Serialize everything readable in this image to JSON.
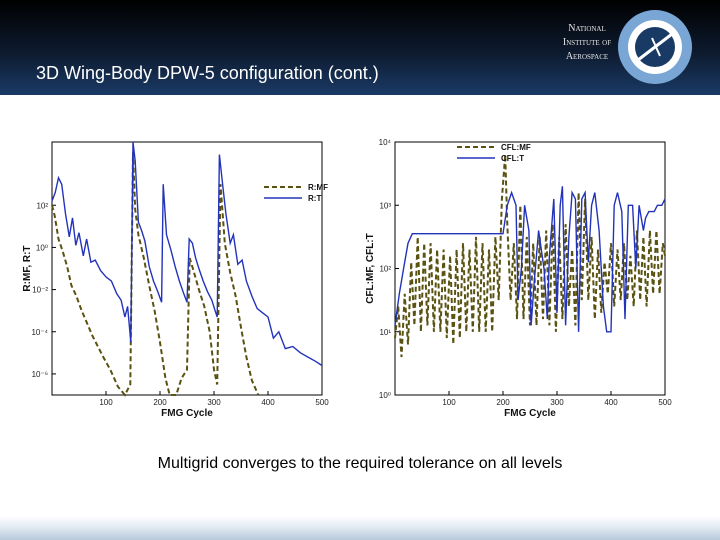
{
  "slide": {
    "title": "3D Wing-Body DPW-5 configuration (cont.)",
    "caption": "Multigrid converges to the required tolerance on all levels"
  },
  "logo": {
    "lines": [
      "National",
      "Institute of",
      "Aerospace"
    ]
  },
  "colors": {
    "mf": "#5a5210",
    "t": "#2233bb",
    "header": "#0d1a2e"
  },
  "chart_data": [
    {
      "type": "line",
      "xlabel": "FMG Cycle",
      "ylabel": "R:MF, R:T",
      "x_ticks": [
        "100",
        "200",
        "300",
        "400",
        "500"
      ],
      "y_ticks": [
        "10²",
        "10⁰",
        "10⁻²",
        "10⁻⁴",
        "10⁻⁶"
      ],
      "y_log_range": [
        -7,
        5
      ],
      "x_range": [
        0,
        500
      ],
      "yscale": "log",
      "legend_position": "top-right",
      "series": [
        {
          "name": "R:MF",
          "style": "dashed",
          "points": [
            [
              0,
              2
            ],
            [
              5,
              1.5
            ],
            [
              12,
              0.4
            ],
            [
              20,
              -0.2
            ],
            [
              28,
              -0.9
            ],
            [
              36,
              -1.8
            ],
            [
              45,
              -2.3
            ],
            [
              55,
              -3.0
            ],
            [
              65,
              -3.6
            ],
            [
              75,
              -4.2
            ],
            [
              85,
              -4.7
            ],
            [
              95,
              -5.2
            ],
            [
              108,
              -5.8
            ],
            [
              122,
              -6.6
            ],
            [
              135,
              -7
            ],
            [
              145,
              -6.5
            ],
            [
              150,
              4.5
            ],
            [
              154,
              1.8
            ],
            [
              160,
              0.6
            ],
            [
              170,
              -0.5
            ],
            [
              180,
              -1.8
            ],
            [
              190,
              -3.0
            ],
            [
              200,
              -4.5
            ],
            [
              210,
              -6.2
            ],
            [
              218,
              -7
            ],
            [
              230,
              -7
            ],
            [
              240,
              -6.2
            ],
            [
              250,
              -5.8
            ],
            [
              255,
              -0.5
            ],
            [
              262,
              -1.1
            ],
            [
              272,
              -2.0
            ],
            [
              282,
              -2.8
            ],
            [
              292,
              -4.0
            ],
            [
              300,
              -5.8
            ],
            [
              306,
              -6.5
            ],
            [
              312,
              3.0
            ],
            [
              320,
              0.2
            ],
            [
              330,
              -1.2
            ],
            [
              340,
              -2.3
            ],
            [
              350,
              -3.8
            ],
            [
              360,
              -5.2
            ],
            [
              370,
              -6.3
            ],
            [
              382,
              -7
            ]
          ]
        },
        {
          "name": "R:T",
          "style": "solid",
          "points": [
            [
              0,
              2.2
            ],
            [
              6,
              2.6
            ],
            [
              12,
              3.3
            ],
            [
              18,
              3.0
            ],
            [
              25,
              1.6
            ],
            [
              32,
              0.5
            ],
            [
              38,
              1.4
            ],
            [
              44,
              0.1
            ],
            [
              50,
              0.7
            ],
            [
              58,
              -0.4
            ],
            [
              64,
              0.4
            ],
            [
              72,
              -0.7
            ],
            [
              80,
              -0.6
            ],
            [
              90,
              -1.1
            ],
            [
              100,
              -1.4
            ],
            [
              110,
              -1.6
            ],
            [
              120,
              -2.2
            ],
            [
              128,
              -2.5
            ],
            [
              135,
              -3.3
            ],
            [
              140,
              -2.8
            ],
            [
              146,
              -4.5
            ],
            [
              150,
              5.0
            ],
            [
              154,
              4.1
            ],
            [
              160,
              1.2
            ],
            [
              166,
              0.8
            ],
            [
              172,
              0.3
            ],
            [
              180,
              -0.9
            ],
            [
              188,
              -1.6
            ],
            [
              196,
              -2.1
            ],
            [
              203,
              -2.6
            ],
            [
              206,
              3.0
            ],
            [
              212,
              0.6
            ],
            [
              220,
              -0.1
            ],
            [
              228,
              -0.9
            ],
            [
              236,
              -1.6
            ],
            [
              244,
              -2.2
            ],
            [
              250,
              -2.6
            ],
            [
              254,
              0.4
            ],
            [
              260,
              0.2
            ],
            [
              266,
              -0.5
            ],
            [
              272,
              -1.0
            ],
            [
              280,
              -1.6
            ],
            [
              288,
              -2.1
            ],
            [
              296,
              -2.5
            ],
            [
              302,
              -3.0
            ],
            [
              306,
              -3.3
            ],
            [
              310,
              4.4
            ],
            [
              316,
              3.0
            ],
            [
              322,
              1.6
            ],
            [
              330,
              0.2
            ],
            [
              336,
              0.6
            ],
            [
              344,
              -0.8
            ],
            [
              352,
              -0.6
            ],
            [
              360,
              -1.6
            ],
            [
              370,
              -2.3
            ],
            [
              380,
              -2.9
            ],
            [
              390,
              -3.1
            ],
            [
              400,
              -3.3
            ],
            [
              410,
              -4.3
            ],
            [
              420,
              -4.0
            ],
            [
              432,
              -4.8
            ],
            [
              446,
              -4.7
            ],
            [
              460,
              -5.0
            ],
            [
              474,
              -5.2
            ],
            [
              488,
              -5.4
            ],
            [
              500,
              -5.6
            ]
          ]
        }
      ]
    },
    {
      "type": "line",
      "xlabel": "FMG Cycle",
      "ylabel": "CFL:MF, CFL:T",
      "x_ticks": [
        "100",
        "200",
        "300",
        "400",
        "500"
      ],
      "y_ticks": [
        "10⁴",
        "10³",
        "10²",
        "10¹",
        "10⁰"
      ],
      "y_log_range": [
        0,
        4
      ],
      "x_range": [
        0,
        500
      ],
      "yscale": "log",
      "legend_position": "top-right",
      "series": [
        {
          "name": "CFL:MF",
          "style": "dashed",
          "points": [
            [
              0,
              0.9
            ],
            [
              6,
              1.4
            ],
            [
              12,
              0.6
            ],
            [
              18,
              1.6
            ],
            [
              24,
              0.8
            ],
            [
              30,
              2.1
            ],
            [
              36,
              1.1
            ],
            [
              42,
              2.5
            ],
            [
              48,
              1.0
            ],
            [
              54,
              2.4
            ],
            [
              60,
              1.1
            ],
            [
              66,
              2.4
            ],
            [
              72,
              1.0
            ],
            [
              78,
              2.3
            ],
            [
              84,
              1.0
            ],
            [
              90,
              2.3
            ],
            [
              96,
              0.9
            ],
            [
              102,
              2.2
            ],
            [
              108,
              0.8
            ],
            [
              114,
              2.3
            ],
            [
              120,
              0.9
            ],
            [
              126,
              2.4
            ],
            [
              132,
              1.0
            ],
            [
              138,
              2.3
            ],
            [
              144,
              1.0
            ],
            [
              150,
              2.5
            ],
            [
              156,
              1.0
            ],
            [
              162,
              2.4
            ],
            [
              168,
              1.0
            ],
            [
              174,
              2.3
            ],
            [
              180,
              1.0
            ],
            [
              186,
              2.5
            ],
            [
              192,
              1.5
            ],
            [
              198,
              3.1
            ],
            [
              204,
              3.8
            ],
            [
              208,
              2.7
            ],
            [
              214,
              1.5
            ],
            [
              220,
              2.4
            ],
            [
              226,
              1.2
            ],
            [
              232,
              3.0
            ],
            [
              238,
              1.2
            ],
            [
              244,
              2.5
            ],
            [
              250,
              1.1
            ],
            [
              256,
              2.4
            ],
            [
              262,
              1.1
            ],
            [
              268,
              2.5
            ],
            [
              274,
              1.2
            ],
            [
              280,
              2.6
            ],
            [
              286,
              1.1
            ],
            [
              292,
              2.7
            ],
            [
              298,
              1.0
            ],
            [
              304,
              2.5
            ],
            [
              310,
              1.2
            ],
            [
              316,
              2.7
            ],
            [
              322,
              1.4
            ],
            [
              328,
              2.3
            ],
            [
              334,
              1.1
            ],
            [
              340,
              3.2
            ],
            [
              346,
              1.5
            ],
            [
              352,
              3.1
            ],
            [
              358,
              1.5
            ],
            [
              364,
              2.5
            ],
            [
              370,
              1.2
            ],
            [
              376,
              2.3
            ],
            [
              382,
              1.3
            ],
            [
              388,
              2.1
            ],
            [
              394,
              1.6
            ],
            [
              400,
              2.4
            ],
            [
              406,
              1.4
            ],
            [
              412,
              2.3
            ],
            [
              418,
              1.5
            ],
            [
              424,
              2.4
            ],
            [
              430,
              1.5
            ],
            [
              436,
              2.2
            ],
            [
              442,
              1.4
            ],
            [
              448,
              2.6
            ],
            [
              454,
              1.5
            ],
            [
              460,
              2.5
            ],
            [
              466,
              1.4
            ],
            [
              472,
              2.6
            ],
            [
              478,
              1.6
            ],
            [
              484,
              2.6
            ],
            [
              490,
              1.6
            ],
            [
              496,
              2.4
            ],
            [
              500,
              2.2
            ]
          ]
        },
        {
          "name": "CFL:T",
          "style": "solid",
          "points": [
            [
              0,
              1.1
            ],
            [
              8,
              1.6
            ],
            [
              16,
              2.0
            ],
            [
              24,
              2.4
            ],
            [
              32,
              2.55
            ],
            [
              200,
              2.55
            ],
            [
              208,
              3.0
            ],
            [
              216,
              3.2
            ],
            [
              224,
              3.0
            ],
            [
              228,
              1.5
            ],
            [
              234,
              2.0
            ],
            [
              240,
              3.0
            ],
            [
              248,
              2.6
            ],
            [
              252,
              1.1
            ],
            [
              258,
              1.8
            ],
            [
              266,
              2.6
            ],
            [
              276,
              2.0
            ],
            [
              282,
              1.2
            ],
            [
              286,
              2.2
            ],
            [
              294,
              3.1
            ],
            [
              300,
              1.3
            ],
            [
              306,
              3.0
            ],
            [
              310,
              3.3
            ],
            [
              316,
              1.1
            ],
            [
              322,
              2.5
            ],
            [
              328,
              3.2
            ],
            [
              334,
              3.1
            ],
            [
              340,
              1.0
            ],
            [
              346,
              3.1
            ],
            [
              352,
              3.2
            ],
            [
              358,
              2.1
            ],
            [
              364,
              3.0
            ],
            [
              370,
              3.2
            ],
            [
              378,
              2.6
            ],
            [
              386,
              1.4
            ],
            [
              392,
              1.0
            ],
            [
              400,
              1.0
            ],
            [
              406,
              3.0
            ],
            [
              412,
              3.2
            ],
            [
              420,
              2.9
            ],
            [
              426,
              1.2
            ],
            [
              432,
              3.0
            ],
            [
              440,
              3.0
            ],
            [
              446,
              2.0
            ],
            [
              452,
              3.0
            ],
            [
              460,
              2.6
            ],
            [
              464,
              2.8
            ],
            [
              470,
              2.9
            ],
            [
              480,
              2.9
            ],
            [
              486,
              3.0
            ],
            [
              494,
              3.0
            ],
            [
              500,
              3.1
            ]
          ]
        }
      ]
    }
  ]
}
